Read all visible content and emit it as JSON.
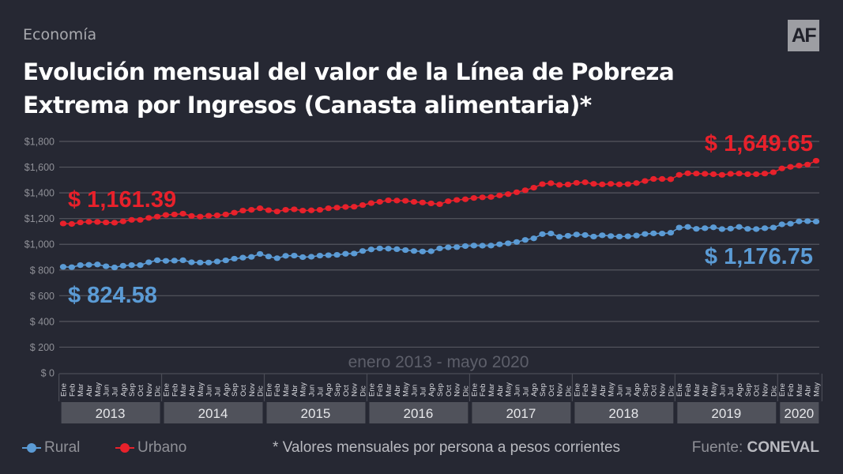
{
  "header": {
    "section": "Economía",
    "title": "Evolución mensual del valor de la Línea de Pobreza Extrema por Ingresos (Canasta alimentaria)*",
    "logo": "AF"
  },
  "footer": {
    "note": "* Valores mensuales por persona a pesos corrientes",
    "source_label": "Fuente:",
    "source_name": "CONEVAL"
  },
  "colors": {
    "background": "#262833",
    "rural": "#5b9bd5",
    "urbano": "#e8212b",
    "grid": "#55565f",
    "year_box": "#50525b"
  },
  "chart_data": {
    "type": "line",
    "title": "Evolución mensual del valor de la Línea de Pobreza Extrema por Ingresos (Canasta alimentaria)*",
    "subtitle": "enero 2013 - mayo 2020",
    "xlabel": "",
    "ylabel": "",
    "ylim": [
      0,
      1800
    ],
    "yticks": [
      0,
      200,
      400,
      600,
      800,
      1000,
      1200,
      1400,
      1600,
      1800
    ],
    "ytick_labels": [
      "$ 0",
      "$ 200",
      "$ 400",
      "$ 600",
      "$ 800",
      "$1,000",
      "$1,200",
      "$1,400",
      "$1,600",
      "$1,800"
    ],
    "grid": true,
    "legend": "bottom-left",
    "month_labels": [
      "Ene",
      "Feb",
      "Mar",
      "Abr",
      "May",
      "Jun",
      "Jul",
      "Ago",
      "Sep",
      "Oct",
      "Nov",
      "Dic"
    ],
    "years": [
      {
        "label": "2013",
        "months": 12
      },
      {
        "label": "2014",
        "months": 12
      },
      {
        "label": "2015",
        "months": 12
      },
      {
        "label": "2016",
        "months": 12
      },
      {
        "label": "2017",
        "months": 12
      },
      {
        "label": "2018",
        "months": 12
      },
      {
        "label": "2019",
        "months": 12
      },
      {
        "label": "2020",
        "months": 5
      }
    ],
    "series": [
      {
        "name": "Rural",
        "color": "#5b9bd5",
        "start_label": "$ 824.58",
        "end_label": "$ 1,176.75",
        "values": [
          824.6,
          822,
          838,
          840,
          843,
          829,
          820,
          833,
          838,
          838,
          860,
          876,
          871,
          873,
          876,
          860,
          858,
          858,
          866,
          875,
          888,
          896,
          902,
          925,
          905,
          892,
          910,
          912,
          900,
          903,
          912,
          915,
          918,
          926,
          928,
          948,
          960,
          968,
          966,
          962,
          955,
          948,
          944,
          946,
          968,
          976,
          978,
          986,
          990,
          989,
          990,
          1000,
          1008,
          1018,
          1034,
          1046,
          1079,
          1084,
          1058,
          1066,
          1076,
          1072,
          1060,
          1070,
          1064,
          1060,
          1062,
          1068,
          1080,
          1085,
          1084,
          1090,
          1130,
          1135,
          1120,
          1125,
          1132,
          1118,
          1122,
          1135,
          1120,
          1118,
          1125,
          1130,
          1155,
          1160,
          1178,
          1180,
          1176.75
        ]
      },
      {
        "name": "Urbano",
        "color": "#e8212b",
        "start_label": "$ 1,161.39",
        "end_label": "$ 1,649.65",
        "values": [
          1161.4,
          1158,
          1170,
          1175,
          1174,
          1170,
          1168,
          1178,
          1190,
          1190,
          1205,
          1215,
          1228,
          1232,
          1238,
          1220,
          1215,
          1222,
          1225,
          1232,
          1246,
          1262,
          1268,
          1280,
          1265,
          1255,
          1268,
          1272,
          1262,
          1264,
          1268,
          1280,
          1285,
          1290,
          1292,
          1305,
          1320,
          1330,
          1342,
          1340,
          1338,
          1330,
          1325,
          1318,
          1312,
          1335,
          1345,
          1350,
          1360,
          1365,
          1368,
          1380,
          1390,
          1405,
          1420,
          1440,
          1468,
          1475,
          1462,
          1465,
          1478,
          1482,
          1470,
          1466,
          1470,
          1466,
          1468,
          1476,
          1492,
          1508,
          1508,
          1506,
          1540,
          1552,
          1550,
          1548,
          1545,
          1540,
          1548,
          1550,
          1545,
          1545,
          1550,
          1560,
          1590,
          1602,
          1612,
          1620,
          1649.65
        ]
      }
    ]
  }
}
